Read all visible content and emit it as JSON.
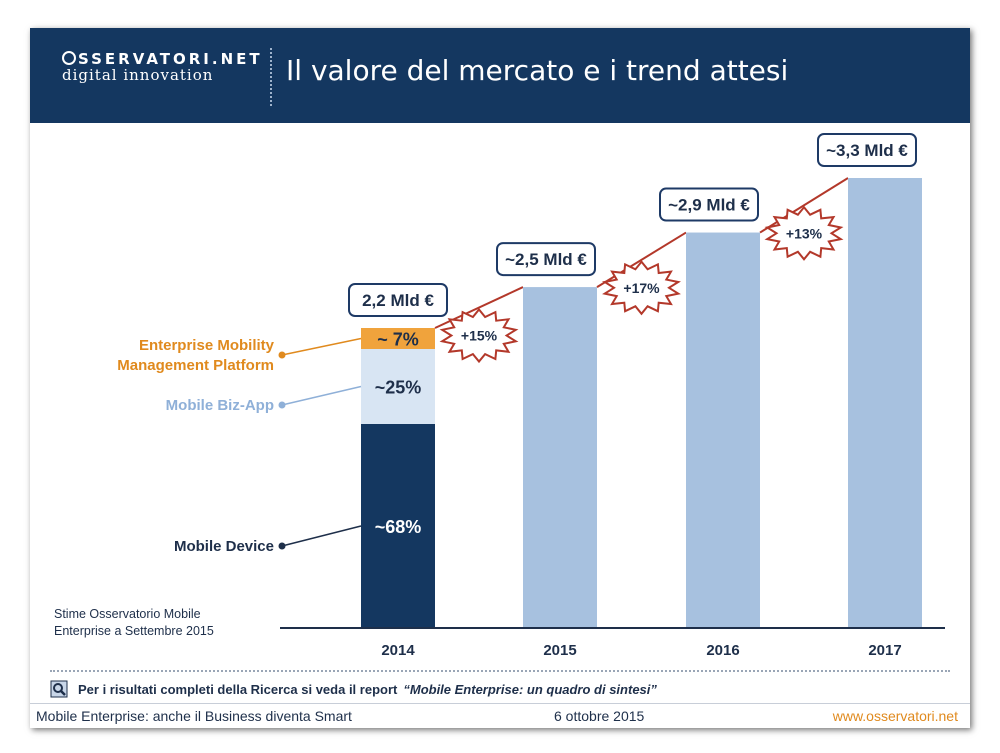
{
  "header": {
    "logo_top": "SSERVATORI.NET",
    "logo_bottom": "digital innovation",
    "title": "Il valore del mercato e i trend attesi"
  },
  "colors": {
    "header_bg": "#143760",
    "bar_light": "#a7c1df",
    "bar_dark": "#143760",
    "segment_bizapp": "#d8e5f3",
    "segment_emm": "#f0a33c",
    "growth_line": "#b3382a",
    "accent_orange": "#e08a1e"
  },
  "chart_data": {
    "type": "bar",
    "title": "Il valore del mercato e i trend attesi",
    "unit": "Mld €",
    "categories": [
      "2014",
      "2015",
      "2016",
      "2017"
    ],
    "values": [
      2.2,
      2.5,
      2.9,
      3.3
    ],
    "value_labels": [
      "2,2 Mld €",
      "~2,5 Mld €",
      "~2,9 Mld €",
      "~3,3 Mld €"
    ],
    "growth_labels": [
      "+15%",
      "+17%",
      "+13%"
    ],
    "breakdown_2014": [
      {
        "name": "Mobile Device",
        "share": 68,
        "label": "~68%"
      },
      {
        "name": "Mobile Biz-App",
        "share": 25,
        "label": "~25%"
      },
      {
        "name": "Enterprise Mobility Management Platform",
        "share": 7,
        "label": "~ 7%"
      }
    ],
    "legend_labels": {
      "emm_line1": "Enterprise Mobility",
      "emm_line2": "Management Platform",
      "bizapp": "Mobile Biz-App",
      "device": "Mobile Device"
    },
    "ylim": [
      0,
      3.6
    ]
  },
  "notes": {
    "source_line1": "Stime Osservatorio Mobile",
    "source_line2": "Enterprise a Settembre 2015",
    "report_text": "Per i risultati completi della Ricerca si veda il report",
    "report_quote": "“Mobile Enterprise: un quadro di sintesi”"
  },
  "footer": {
    "left": "Mobile Enterprise: anche il Business diventa Smart",
    "center": "6 ottobre 2015",
    "right": "www.osservatori.net"
  }
}
